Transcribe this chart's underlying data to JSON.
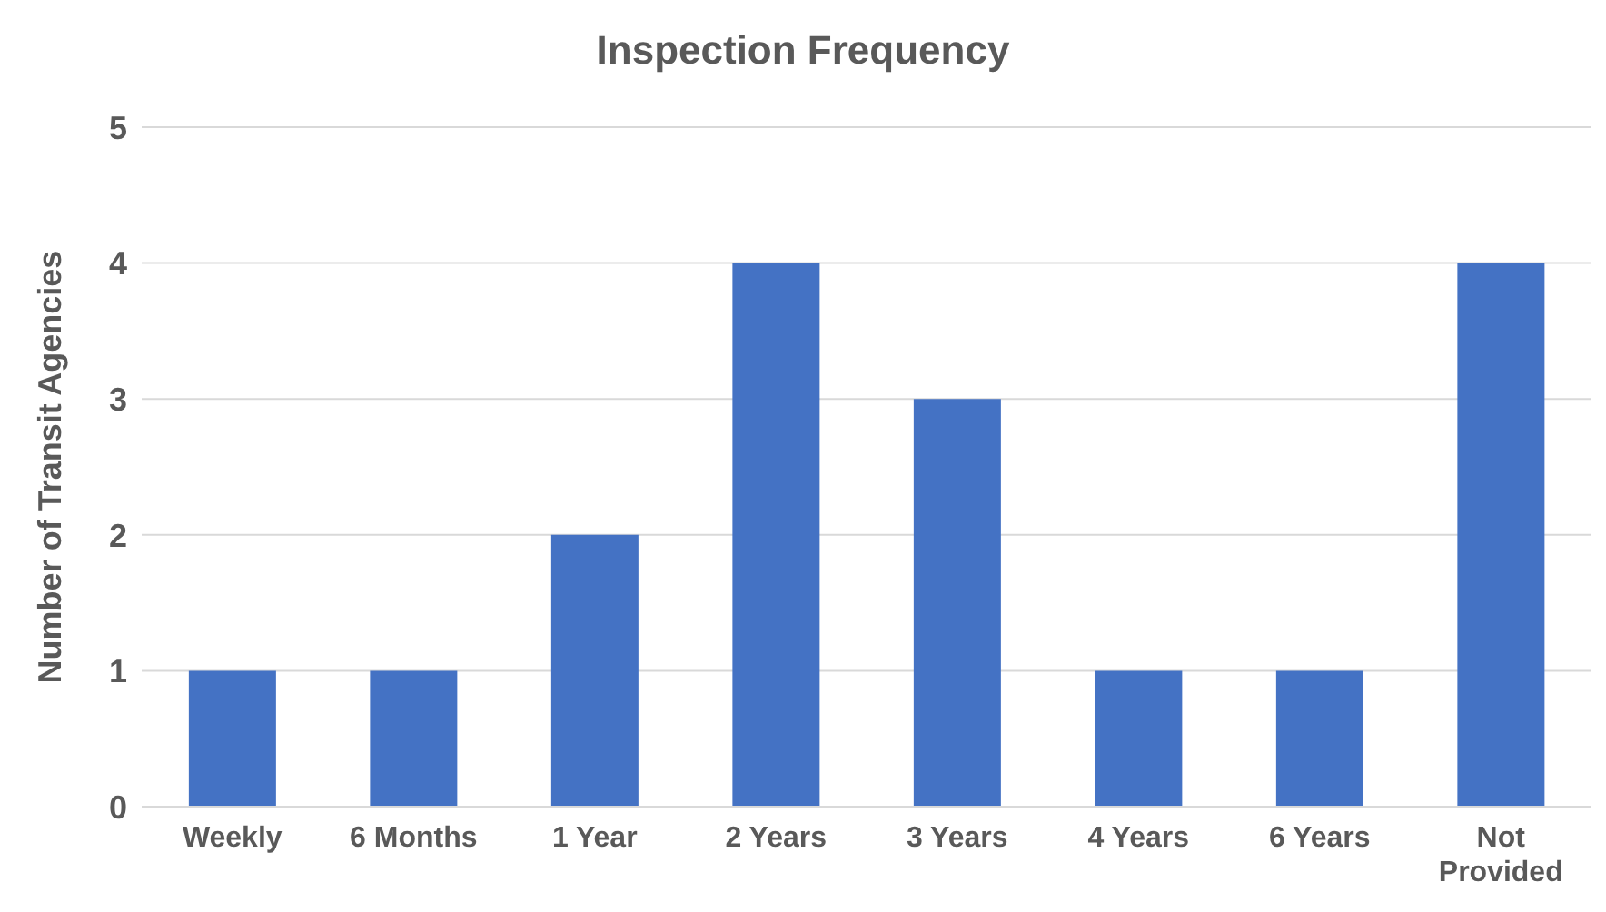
{
  "chart_data": {
    "type": "bar",
    "title": "Inspection Frequency",
    "ylabel": "Number of Transit Agencies",
    "categories": [
      "Weekly",
      "6 Months",
      "1 Year",
      "2 Years",
      "3 Years",
      "4 Years",
      "6 Years",
      "Not Provided"
    ],
    "values": [
      1,
      1,
      2,
      4,
      3,
      1,
      1,
      4
    ],
    "color": "#4472c4",
    "ylim": [
      0,
      5
    ],
    "yticks": [
      0,
      1,
      2,
      3,
      4,
      5
    ],
    "grid": "y",
    "legend": false
  }
}
